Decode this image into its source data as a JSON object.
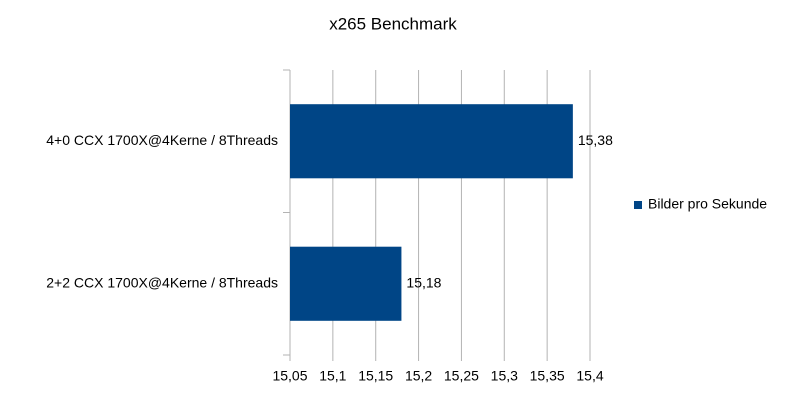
{
  "chart_data": {
    "type": "barh",
    "title": "x265 Benchmark",
    "categories": [
      "4+0 CCX 1700X@4Kerne / 8Threads",
      "2+2 CCX 1700X@4Kerne / 8Threads"
    ],
    "series": [
      {
        "name": "Bilder pro Sekunde",
        "color": "#004586",
        "values": [
          15.38,
          15.18
        ],
        "value_labels": [
          "15,38",
          "15,18"
        ]
      }
    ],
    "xlim": [
      15.05,
      15.4
    ],
    "xticks": [
      {
        "value": 15.05,
        "label": "15,05"
      },
      {
        "value": 15.1,
        "label": "15,1"
      },
      {
        "value": 15.15,
        "label": "15,15"
      },
      {
        "value": 15.2,
        "label": "15,2"
      },
      {
        "value": 15.25,
        "label": "15,25"
      },
      {
        "value": 15.3,
        "label": "15,3"
      },
      {
        "value": 15.35,
        "label": "15,35"
      },
      {
        "value": 15.4,
        "label": "15,4"
      }
    ],
    "grid": true,
    "legend": "right"
  }
}
